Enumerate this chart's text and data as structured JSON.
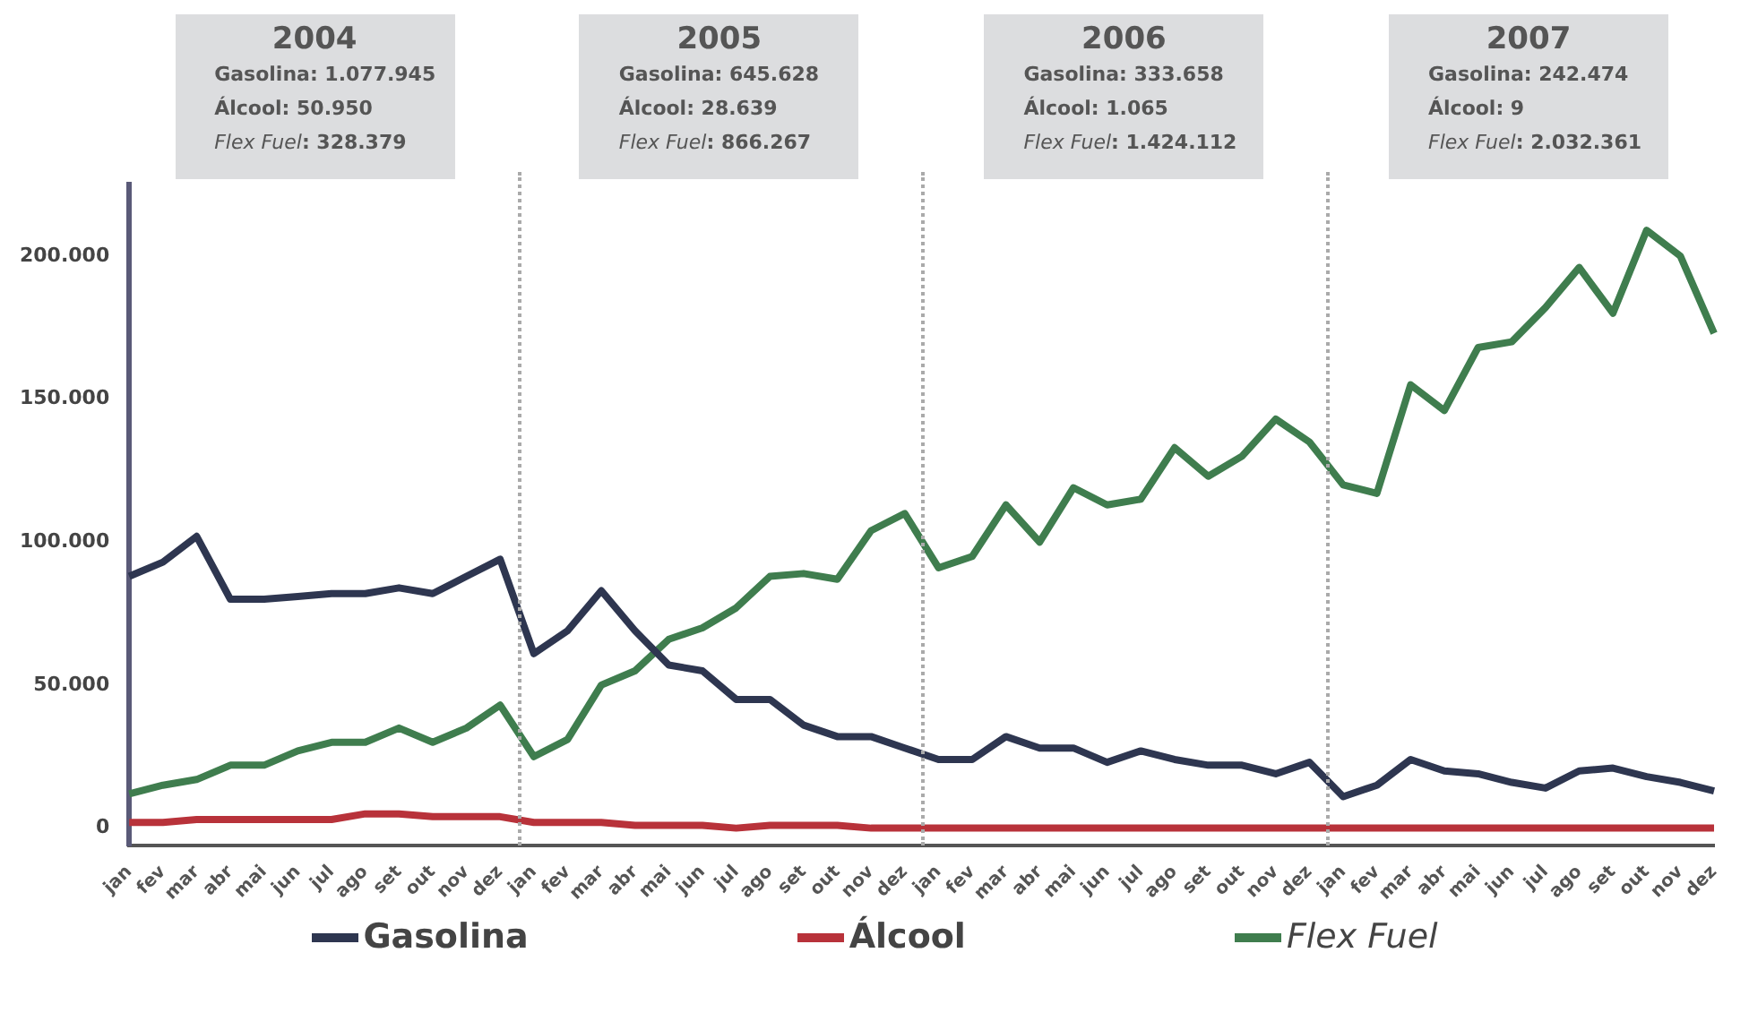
{
  "chart_data": {
    "type": "line",
    "categories": [
      "jan",
      "fev",
      "mar",
      "abr",
      "mai",
      "jun",
      "jul",
      "ago",
      "set",
      "out",
      "nov",
      "dez",
      "jan",
      "fev",
      "mar",
      "abr",
      "mai",
      "jun",
      "jul",
      "ago",
      "set",
      "out",
      "nov",
      "dez",
      "jan",
      "fev",
      "mar",
      "abr",
      "mai",
      "jun",
      "jul",
      "ago",
      "set",
      "out",
      "nov",
      "dez",
      "jan",
      "fev",
      "mar",
      "abr",
      "mai",
      "jun",
      "jul",
      "ago",
      "set",
      "out",
      "nov",
      "dez"
    ],
    "series": [
      {
        "name": "Gasolina",
        "color": "#2e3650",
        "values": [
          88000,
          93000,
          102000,
          80000,
          80000,
          81000,
          82000,
          82000,
          84000,
          82000,
          88000,
          94000,
          61000,
          69000,
          83000,
          69000,
          57000,
          55000,
          45000,
          45000,
          36000,
          32000,
          32000,
          28000,
          24000,
          24000,
          32000,
          28000,
          28000,
          23000,
          27000,
          24000,
          22000,
          22000,
          19000,
          23000,
          11000,
          15000,
          24000,
          20000,
          19000,
          16000,
          14000,
          20000,
          21000,
          18000,
          16000,
          13000
        ]
      },
      {
        "name": "Álcool",
        "color": "#b8323a",
        "values": [
          2000,
          2000,
          3000,
          3000,
          3000,
          3000,
          3000,
          5000,
          5000,
          4000,
          4000,
          4000,
          2000,
          2000,
          2000,
          1000,
          1000,
          1000,
          0,
          1000,
          1000,
          1000,
          0,
          0,
          0,
          0,
          0,
          0,
          0,
          0,
          0,
          0,
          0,
          0,
          0,
          0,
          0,
          0,
          0,
          0,
          0,
          0,
          0,
          0,
          0,
          0,
          0,
          0
        ]
      },
      {
        "name": "Flex Fuel",
        "color": "#3f7d4e",
        "values": [
          12000,
          15000,
          17000,
          22000,
          22000,
          27000,
          30000,
          30000,
          35000,
          30000,
          35000,
          43000,
          25000,
          31000,
          50000,
          55000,
          66000,
          70000,
          77000,
          88000,
          89000,
          87000,
          104000,
          110000,
          91000,
          95000,
          113000,
          100000,
          119000,
          113000,
          115000,
          133000,
          123000,
          130000,
          143000,
          135000,
          120000,
          117000,
          155000,
          146000,
          168000,
          170000,
          182000,
          196000,
          180000,
          209000,
          200000,
          173000
        ]
      }
    ],
    "ylim": [
      -6000,
      225000
    ],
    "yticks": [
      {
        "value": 0,
        "label": "0"
      },
      {
        "value": 50000,
        "label": "50.000"
      },
      {
        "value": 100000,
        "label": "100.000"
      },
      {
        "value": 150000,
        "label": "150.000"
      },
      {
        "value": 200000,
        "label": "200.000"
      }
    ],
    "annotations": [
      "2004",
      "Gasolina: 1.077.945",
      "Álcool: 50.950",
      "Flex Fuel: 328.379",
      "2005",
      "Gasolina: 645.628",
      "Álcool: 28.639",
      "Flex Fuel: 866.267",
      "2006",
      "Gasolina: 333.658",
      "Álcool: 1.065",
      "Flex Fuel: 1.424.112",
      "2007",
      "Gasolina: 242.474",
      "Álcool: 9",
      "Flex Fuel: 2.032.361"
    ],
    "legend": "bottom",
    "grid": false,
    "marker": "none",
    "line_style": "solid"
  }
}
